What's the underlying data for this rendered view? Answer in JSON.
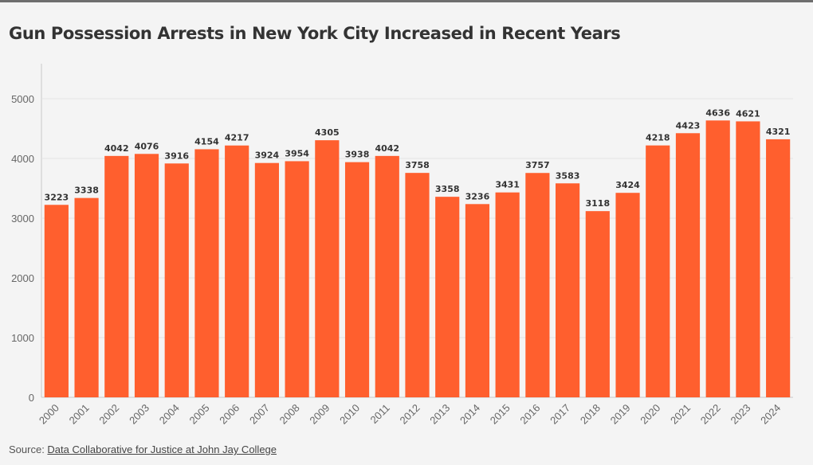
{
  "title": "Gun Possession Arrests in New York City Increased in Recent Years",
  "source": {
    "label": "Source: ",
    "link_text": "Data Collaborative for Justice at John Jay College"
  },
  "colors": {
    "bar": "#ff5f2e",
    "grid": "#e3e3e3",
    "axis": "#c8c8c8",
    "tick_text": "#666666",
    "value_text": "#333333"
  },
  "chart_data": {
    "type": "bar",
    "title": "Gun Possession Arrests in New York City Increased in Recent Years",
    "xlabel": "",
    "ylabel": "",
    "categories": [
      "2000",
      "2001",
      "2002",
      "2003",
      "2004",
      "2005",
      "2006",
      "2007",
      "2008",
      "2009",
      "2010",
      "2011",
      "2012",
      "2013",
      "2014",
      "2015",
      "2016",
      "2017",
      "2018",
      "2019",
      "2020",
      "2021",
      "2022",
      "2023",
      "2024"
    ],
    "values": [
      3223,
      3338,
      4042,
      4076,
      3916,
      4154,
      4217,
      3924,
      3954,
      4305,
      3938,
      4042,
      3758,
      3358,
      3236,
      3431,
      3757,
      3583,
      3118,
      3424,
      4218,
      4423,
      4636,
      4621,
      4321
    ],
    "yticks": [
      0,
      1000,
      2000,
      3000,
      4000,
      5000
    ],
    "ylim": [
      0,
      5000
    ],
    "grid": true,
    "legend": "none",
    "data_labels": true
  }
}
